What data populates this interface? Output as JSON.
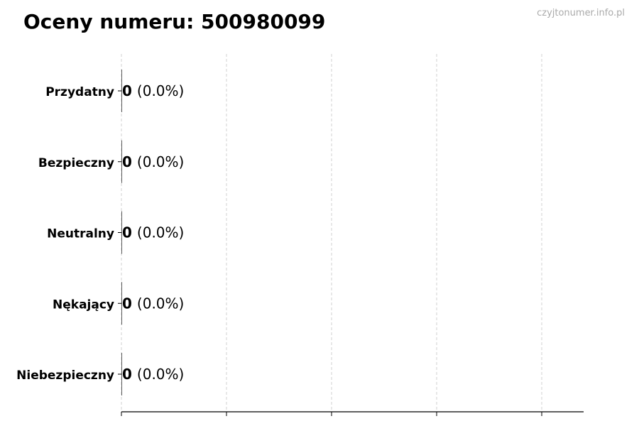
{
  "title": "Oceny numeru: 500980099",
  "watermark": "czyjtonumer.info.pl",
  "chart_data": {
    "type": "bar",
    "orientation": "horizontal",
    "categories": [
      "Przydatny",
      "Bezpieczny",
      "Neutralny",
      "Nękający",
      "Niebezpieczny"
    ],
    "values": [
      0,
      0,
      0,
      0,
      0
    ],
    "data_labels": [
      {
        "count": "0",
        "percent": "(0.0%)"
      },
      {
        "count": "0",
        "percent": "(0.0%)"
      },
      {
        "count": "0",
        "percent": "(0.0%)"
      },
      {
        "count": "0",
        "percent": "(0.0%)"
      },
      {
        "count": "0",
        "percent": "(0.0%)"
      }
    ],
    "x_grid": true,
    "grid_style": "dashed",
    "x_tick_labels_shown": false,
    "colors": {
      "grid": "#d0d0d0",
      "axis": "#000000",
      "watermark": "#aaaaaa"
    }
  }
}
